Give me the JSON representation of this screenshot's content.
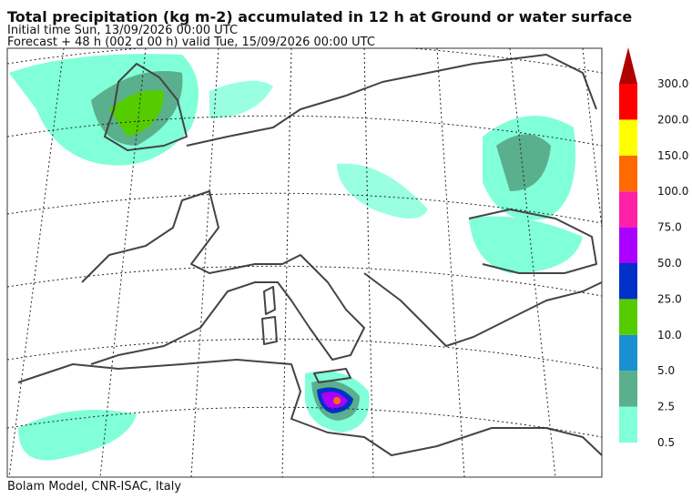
{
  "header": {
    "title": "Total precipitation (kg m-2) accumulated in  12 h at Ground or water surface",
    "initial_time": "Initial time  Sun, 13/09/2026  00:00 UTC",
    "forecast": "Forecast  +  48 h  (002 d 00 h)  valid Tue, 15/09/2026 00:00 UTC"
  },
  "colorbar": {
    "labels": [
      "0.5",
      "2.5",
      "5.0",
      "10.0",
      "25.0",
      "50.0",
      "75.0",
      "100.0",
      "150.0",
      "200.0",
      "300.0"
    ],
    "colors": [
      "#80ffd8",
      "#5aaf8c",
      "#1a90d0",
      "#55cc00",
      "#0030c8",
      "#aa00ff",
      "#ff20a8",
      "#ff6a00",
      "#ffff00",
      "#ff0000",
      "#b00000"
    ]
  },
  "footer": "Bolam Model, CNR-ISAC, Italy"
}
